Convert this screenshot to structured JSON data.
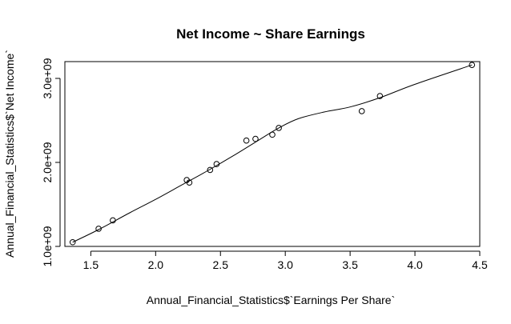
{
  "chart_data": {
    "type": "scatter",
    "title": "Net Income ~ Share Earnings",
    "xlabel": "Annual_Financial_Statistics$`Earnings Per Share`",
    "ylabel": "Annual_Financial_Statistics$`Net Income`",
    "xlim": [
      1.3,
      4.5
    ],
    "ylim": [
      1000000000.0,
      3200000000.0
    ],
    "x_ticks": [
      {
        "value": 1.5,
        "label": "1.5"
      },
      {
        "value": 2.0,
        "label": "2.0"
      },
      {
        "value": 2.5,
        "label": "2.5"
      },
      {
        "value": 3.0,
        "label": "3.0"
      },
      {
        "value": 3.5,
        "label": "3.5"
      },
      {
        "value": 4.0,
        "label": "4.0"
      },
      {
        "value": 4.5,
        "label": "4.5"
      }
    ],
    "y_ticks": [
      {
        "value": 1000000000.0,
        "label": "1.0e+09"
      },
      {
        "value": 2000000000.0,
        "label": "2.0e+09"
      },
      {
        "value": 3000000000.0,
        "label": "3.0e+09"
      }
    ],
    "grid": false,
    "points": [
      {
        "x": 1.36,
        "y": 1050000000.0
      },
      {
        "x": 1.56,
        "y": 1210000000.0
      },
      {
        "x": 1.67,
        "y": 1310000000.0
      },
      {
        "x": 2.24,
        "y": 1790000000.0
      },
      {
        "x": 2.26,
        "y": 1760000000.0
      },
      {
        "x": 2.42,
        "y": 1910000000.0
      },
      {
        "x": 2.47,
        "y": 1980000000.0
      },
      {
        "x": 2.7,
        "y": 2260000000.0
      },
      {
        "x": 2.77,
        "y": 2280000000.0
      },
      {
        "x": 2.9,
        "y": 2330000000.0
      },
      {
        "x": 2.95,
        "y": 2410000000.0
      },
      {
        "x": 3.59,
        "y": 2610000000.0
      },
      {
        "x": 3.73,
        "y": 2790000000.0
      },
      {
        "x": 4.44,
        "y": 3160000000.0
      }
    ],
    "smooth_line": [
      {
        "x": 1.36,
        "y": 1050000000.0
      },
      {
        "x": 1.56,
        "y": 1200000000.0
      },
      {
        "x": 1.8,
        "y": 1400000000.0
      },
      {
        "x": 2.0,
        "y": 1560000000.0
      },
      {
        "x": 2.2,
        "y": 1730000000.0
      },
      {
        "x": 2.4,
        "y": 1900000000.0
      },
      {
        "x": 2.6,
        "y": 2080000000.0
      },
      {
        "x": 2.8,
        "y": 2270000000.0
      },
      {
        "x": 2.95,
        "y": 2410000000.0
      },
      {
        "x": 3.1,
        "y": 2520000000.0
      },
      {
        "x": 3.3,
        "y": 2600000000.0
      },
      {
        "x": 3.5,
        "y": 2660000000.0
      },
      {
        "x": 3.73,
        "y": 2770000000.0
      },
      {
        "x": 4.0,
        "y": 2930000000.0
      },
      {
        "x": 4.44,
        "y": 3160000000.0
      }
    ]
  }
}
